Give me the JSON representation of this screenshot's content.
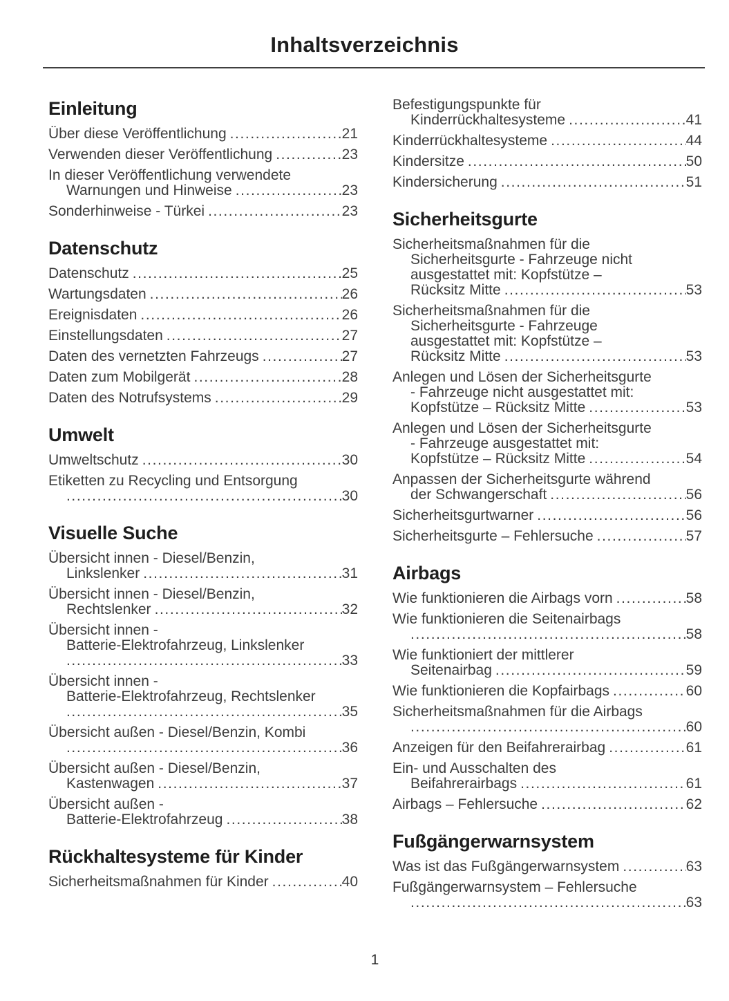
{
  "document": {
    "title": "Inhaltsverzeichnis",
    "footer_page_number": "1"
  },
  "colors": {
    "background": "#ffffff",
    "body_text": "#3c3c3c",
    "heading_text": "#1e1e1e",
    "rule": "#3f3f3f"
  },
  "toc": {
    "columns": [
      {
        "name": "left",
        "sections": [
          {
            "title": "Einleitung",
            "entries": [
              {
                "lines": [
                  "Über diese Veröffentlichung"
                ],
                "page": "21"
              },
              {
                "lines": [
                  "Verwenden dieser Veröffentlichung"
                ],
                "page": "23"
              },
              {
                "lines": [
                  "In dieser Veröffentlichung verwendete",
                  "Warnungen und Hinweise"
                ],
                "page": "23"
              },
              {
                "lines": [
                  "Sonderhinweise - Türkei"
                ],
                "page": "23"
              }
            ]
          },
          {
            "title": "Datenschutz",
            "entries": [
              {
                "lines": [
                  "Datenschutz"
                ],
                "page": "25"
              },
              {
                "lines": [
                  "Wartungsdaten"
                ],
                "page": "26"
              },
              {
                "lines": [
                  "Ereignisdaten"
                ],
                "page": "26"
              },
              {
                "lines": [
                  "Einstellungsdaten"
                ],
                "page": "27"
              },
              {
                "lines": [
                  "Daten des vernetzten Fahrzeugs"
                ],
                "page": "27"
              },
              {
                "lines": [
                  "Daten zum Mobilgerät"
                ],
                "page": "28"
              },
              {
                "lines": [
                  "Daten des Notrufsystems"
                ],
                "page": "29"
              }
            ]
          },
          {
            "title": "Umwelt",
            "entries": [
              {
                "lines": [
                  "Umweltschutz"
                ],
                "page": "30"
              },
              {
                "lines": [
                  "Etiketten zu Recycling und Entsorgung",
                  ""
                ],
                "page": "30"
              }
            ]
          },
          {
            "title": "Visuelle Suche",
            "entries": [
              {
                "lines": [
                  "Übersicht innen - Diesel/Benzin,",
                  "Linkslenker"
                ],
                "page": "31"
              },
              {
                "lines": [
                  "Übersicht innen - Diesel/Benzin,",
                  "Rechtslenker"
                ],
                "page": "32"
              },
              {
                "lines": [
                  "Übersicht innen -",
                  "Batterie-Elektrofahrzeug, Linkslenker",
                  ""
                ],
                "page": "33"
              },
              {
                "lines": [
                  "Übersicht innen -",
                  "Batterie-Elektrofahrzeug, Rechtslenker",
                  ""
                ],
                "page": "35"
              },
              {
                "lines": [
                  "Übersicht außen - Diesel/Benzin, Kombi",
                  ""
                ],
                "page": "36"
              },
              {
                "lines": [
                  "Übersicht außen - Diesel/Benzin,",
                  "Kastenwagen"
                ],
                "page": "37"
              },
              {
                "lines": [
                  "Übersicht außen -",
                  "Batterie-Elektrofahrzeug"
                ],
                "page": "38"
              }
            ]
          },
          {
            "title": "Rückhaltesysteme für Kinder",
            "entries": [
              {
                "lines": [
                  "Sicherheitsmaßnahmen für Kinder"
                ],
                "page": "40"
              }
            ]
          }
        ]
      },
      {
        "name": "right",
        "sections": [
          {
            "title": null,
            "entries": [
              {
                "lines": [
                  "Befestigungspunkte für",
                  "Kinderrückhaltesysteme"
                ],
                "page": "41"
              },
              {
                "lines": [
                  "Kinderrückhaltesysteme"
                ],
                "page": "44"
              },
              {
                "lines": [
                  "Kindersitze"
                ],
                "page": "50"
              },
              {
                "lines": [
                  "Kindersicherung"
                ],
                "page": "51"
              }
            ]
          },
          {
            "title": "Sicherheitsgurte",
            "entries": [
              {
                "lines": [
                  "Sicherheitsmaßnahmen für die",
                  "Sicherheitsgurte - Fahrzeuge nicht",
                  "ausgestattet mit: Kopfstütze –",
                  "Rücksitz Mitte"
                ],
                "page": "53"
              },
              {
                "lines": [
                  "Sicherheitsmaßnahmen für die",
                  "Sicherheitsgurte - Fahrzeuge",
                  "ausgestattet mit: Kopfstütze –",
                  "Rücksitz Mitte"
                ],
                "page": "53"
              },
              {
                "lines": [
                  "Anlegen und Lösen der Sicherheitsgurte",
                  "- Fahrzeuge nicht ausgestattet mit:",
                  "Kopfstütze – Rücksitz Mitte"
                ],
                "page": "53"
              },
              {
                "lines": [
                  "Anlegen und Lösen der Sicherheitsgurte",
                  "- Fahrzeuge ausgestattet mit:",
                  "Kopfstütze – Rücksitz Mitte"
                ],
                "page": "54"
              },
              {
                "lines": [
                  "Anpassen der Sicherheitsgurte während",
                  "der Schwangerschaft"
                ],
                "page": "56"
              },
              {
                "lines": [
                  "Sicherheitsgurtwarner"
                ],
                "page": "56"
              },
              {
                "lines": [
                  "Sicherheitsgurte – Fehlersuche"
                ],
                "page": "57"
              }
            ]
          },
          {
            "title": "Airbags",
            "entries": [
              {
                "lines": [
                  "Wie funktionieren die Airbags vorn"
                ],
                "page": "58"
              },
              {
                "lines": [
                  "Wie funktionieren die Seitenairbags",
                  ""
                ],
                "page": "58"
              },
              {
                "lines": [
                  "Wie funktioniert der mittlerer",
                  "Seitenairbag"
                ],
                "page": "59"
              },
              {
                "lines": [
                  "Wie funktionieren die Kopfairbags"
                ],
                "page": "60"
              },
              {
                "lines": [
                  "Sicherheitsmaßnahmen für die Airbags",
                  ""
                ],
                "page": "60"
              },
              {
                "lines": [
                  "Anzeigen für den Beifahrerairbag"
                ],
                "page": "61"
              },
              {
                "lines": [
                  "Ein- und Ausschalten des",
                  "Beifahrerairbags"
                ],
                "page": "61"
              },
              {
                "lines": [
                  "Airbags – Fehlersuche"
                ],
                "page": "62"
              }
            ]
          },
          {
            "title": "Fußgängerwarnsystem",
            "entries": [
              {
                "lines": [
                  "Was ist das Fußgängerwarnsystem"
                ],
                "page": "63"
              },
              {
                "lines": [
                  "Fußgängerwarnsystem – Fehlersuche",
                  ""
                ],
                "page": "63"
              }
            ]
          }
        ]
      }
    ]
  }
}
